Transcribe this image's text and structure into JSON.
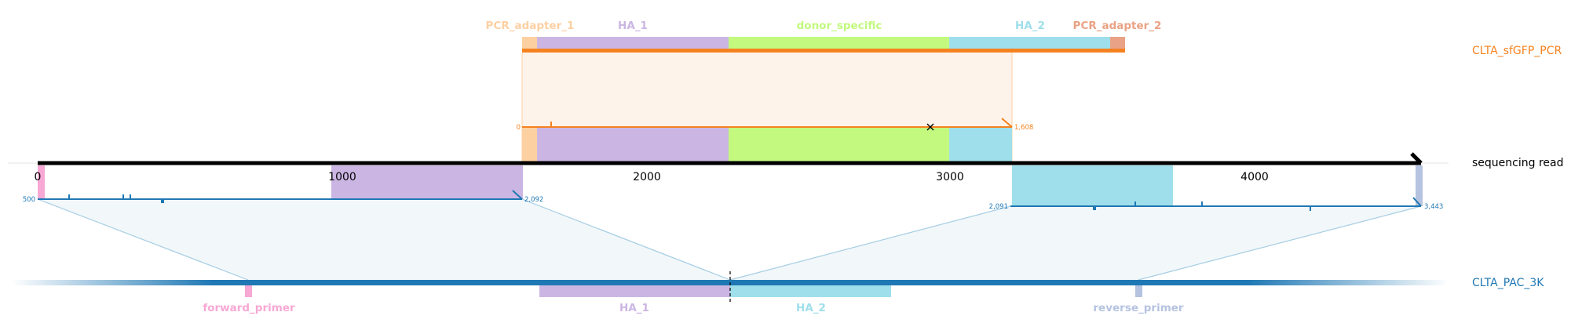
{
  "colors": {
    "pcr_adapter_1": "#fdd0a2",
    "ha_1": "#cbb6e3",
    "donor_specific": "#c2f97e",
    "ha_2": "#9fdfeb",
    "pcr_adapter_2": "#e9a285",
    "orange": "#f58220",
    "blue": "#1f78b4",
    "pink": "#f7a8d4",
    "lavender": "#b6c3e0",
    "black": "#000000"
  },
  "pcr_product": {
    "name": "CLTA_sfGFP_PCR",
    "features": [
      "PCR_adapter_1",
      "HA_1",
      "donor_specific",
      "HA_2",
      "PCR_adapter_2"
    ],
    "alignment_start": "0",
    "alignment_end": "1,608"
  },
  "sequencing_read": {
    "name": "sequencing read",
    "ticks": [
      "0",
      "1000",
      "2000",
      "3000",
      "4000"
    ],
    "left_alignment": {
      "start": "500",
      "end": "2,092"
    },
    "right_alignment": {
      "start": "2,091",
      "end": "3,443"
    }
  },
  "reference": {
    "name": "CLTA_PAC_3K",
    "features": [
      "forward_primer",
      "HA_1",
      "HA_2",
      "reverse_primer"
    ]
  }
}
